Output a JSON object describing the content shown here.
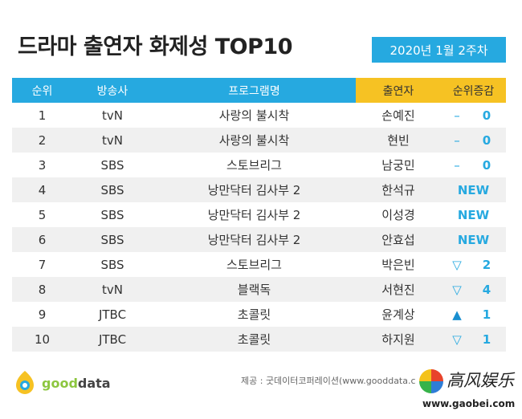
{
  "header": {
    "title": "드라마 출연자 화제성 TOP10",
    "date": "2020년 1월 2주차"
  },
  "columns": {
    "rank": "순위",
    "broadcaster": "방송사",
    "program": "프로그램명",
    "cast": "출연자",
    "change": "순위증감"
  },
  "rows": [
    {
      "rank": "1",
      "broadcaster": "tvN",
      "program": "사랑의 불시착",
      "cast": "손예진",
      "change_symbol": "–",
      "change_value": "0"
    },
    {
      "rank": "2",
      "broadcaster": "tvN",
      "program": "사랑의 불시착",
      "cast": "현빈",
      "change_symbol": "–",
      "change_value": "0"
    },
    {
      "rank": "3",
      "broadcaster": "SBS",
      "program": "스토브리그",
      "cast": "남궁민",
      "change_symbol": "–",
      "change_value": "0"
    },
    {
      "rank": "4",
      "broadcaster": "SBS",
      "program": "낭만닥터 김사부 2",
      "cast": "한석규",
      "change_new": "NEW"
    },
    {
      "rank": "5",
      "broadcaster": "SBS",
      "program": "낭만닥터 김사부 2",
      "cast": "이성경",
      "change_new": "NEW"
    },
    {
      "rank": "6",
      "broadcaster": "SBS",
      "program": "낭만닥터 김사부 2",
      "cast": "안효섭",
      "change_new": "NEW"
    },
    {
      "rank": "7",
      "broadcaster": "SBS",
      "program": "스토브리그",
      "cast": "박은빈",
      "change_symbol": "▽",
      "change_value": "2"
    },
    {
      "rank": "8",
      "broadcaster": "tvN",
      "program": "블랙독",
      "cast": "서현진",
      "change_symbol": "▽",
      "change_value": "4"
    },
    {
      "rank": "9",
      "broadcaster": "JTBC",
      "program": "초콜릿",
      "cast": "윤계상",
      "change_symbol": "▲",
      "change_value": "1"
    },
    {
      "rank": "10",
      "broadcaster": "JTBC",
      "program": "초콜릿",
      "cast": "하지원",
      "change_symbol": "▽",
      "change_value": "1"
    }
  ],
  "footer": {
    "logo_text_a": "good",
    "logo_text_b": "data",
    "source": "제공 : 굿데이터코퍼레이션(www.gooddata.c",
    "watermark_cn": "高风娱乐",
    "watermark_url": "www.gaobei.com"
  },
  "colors": {
    "accent": "#26a9e0",
    "highlight": "#f6c223",
    "logo_green": "#8cc63f"
  }
}
